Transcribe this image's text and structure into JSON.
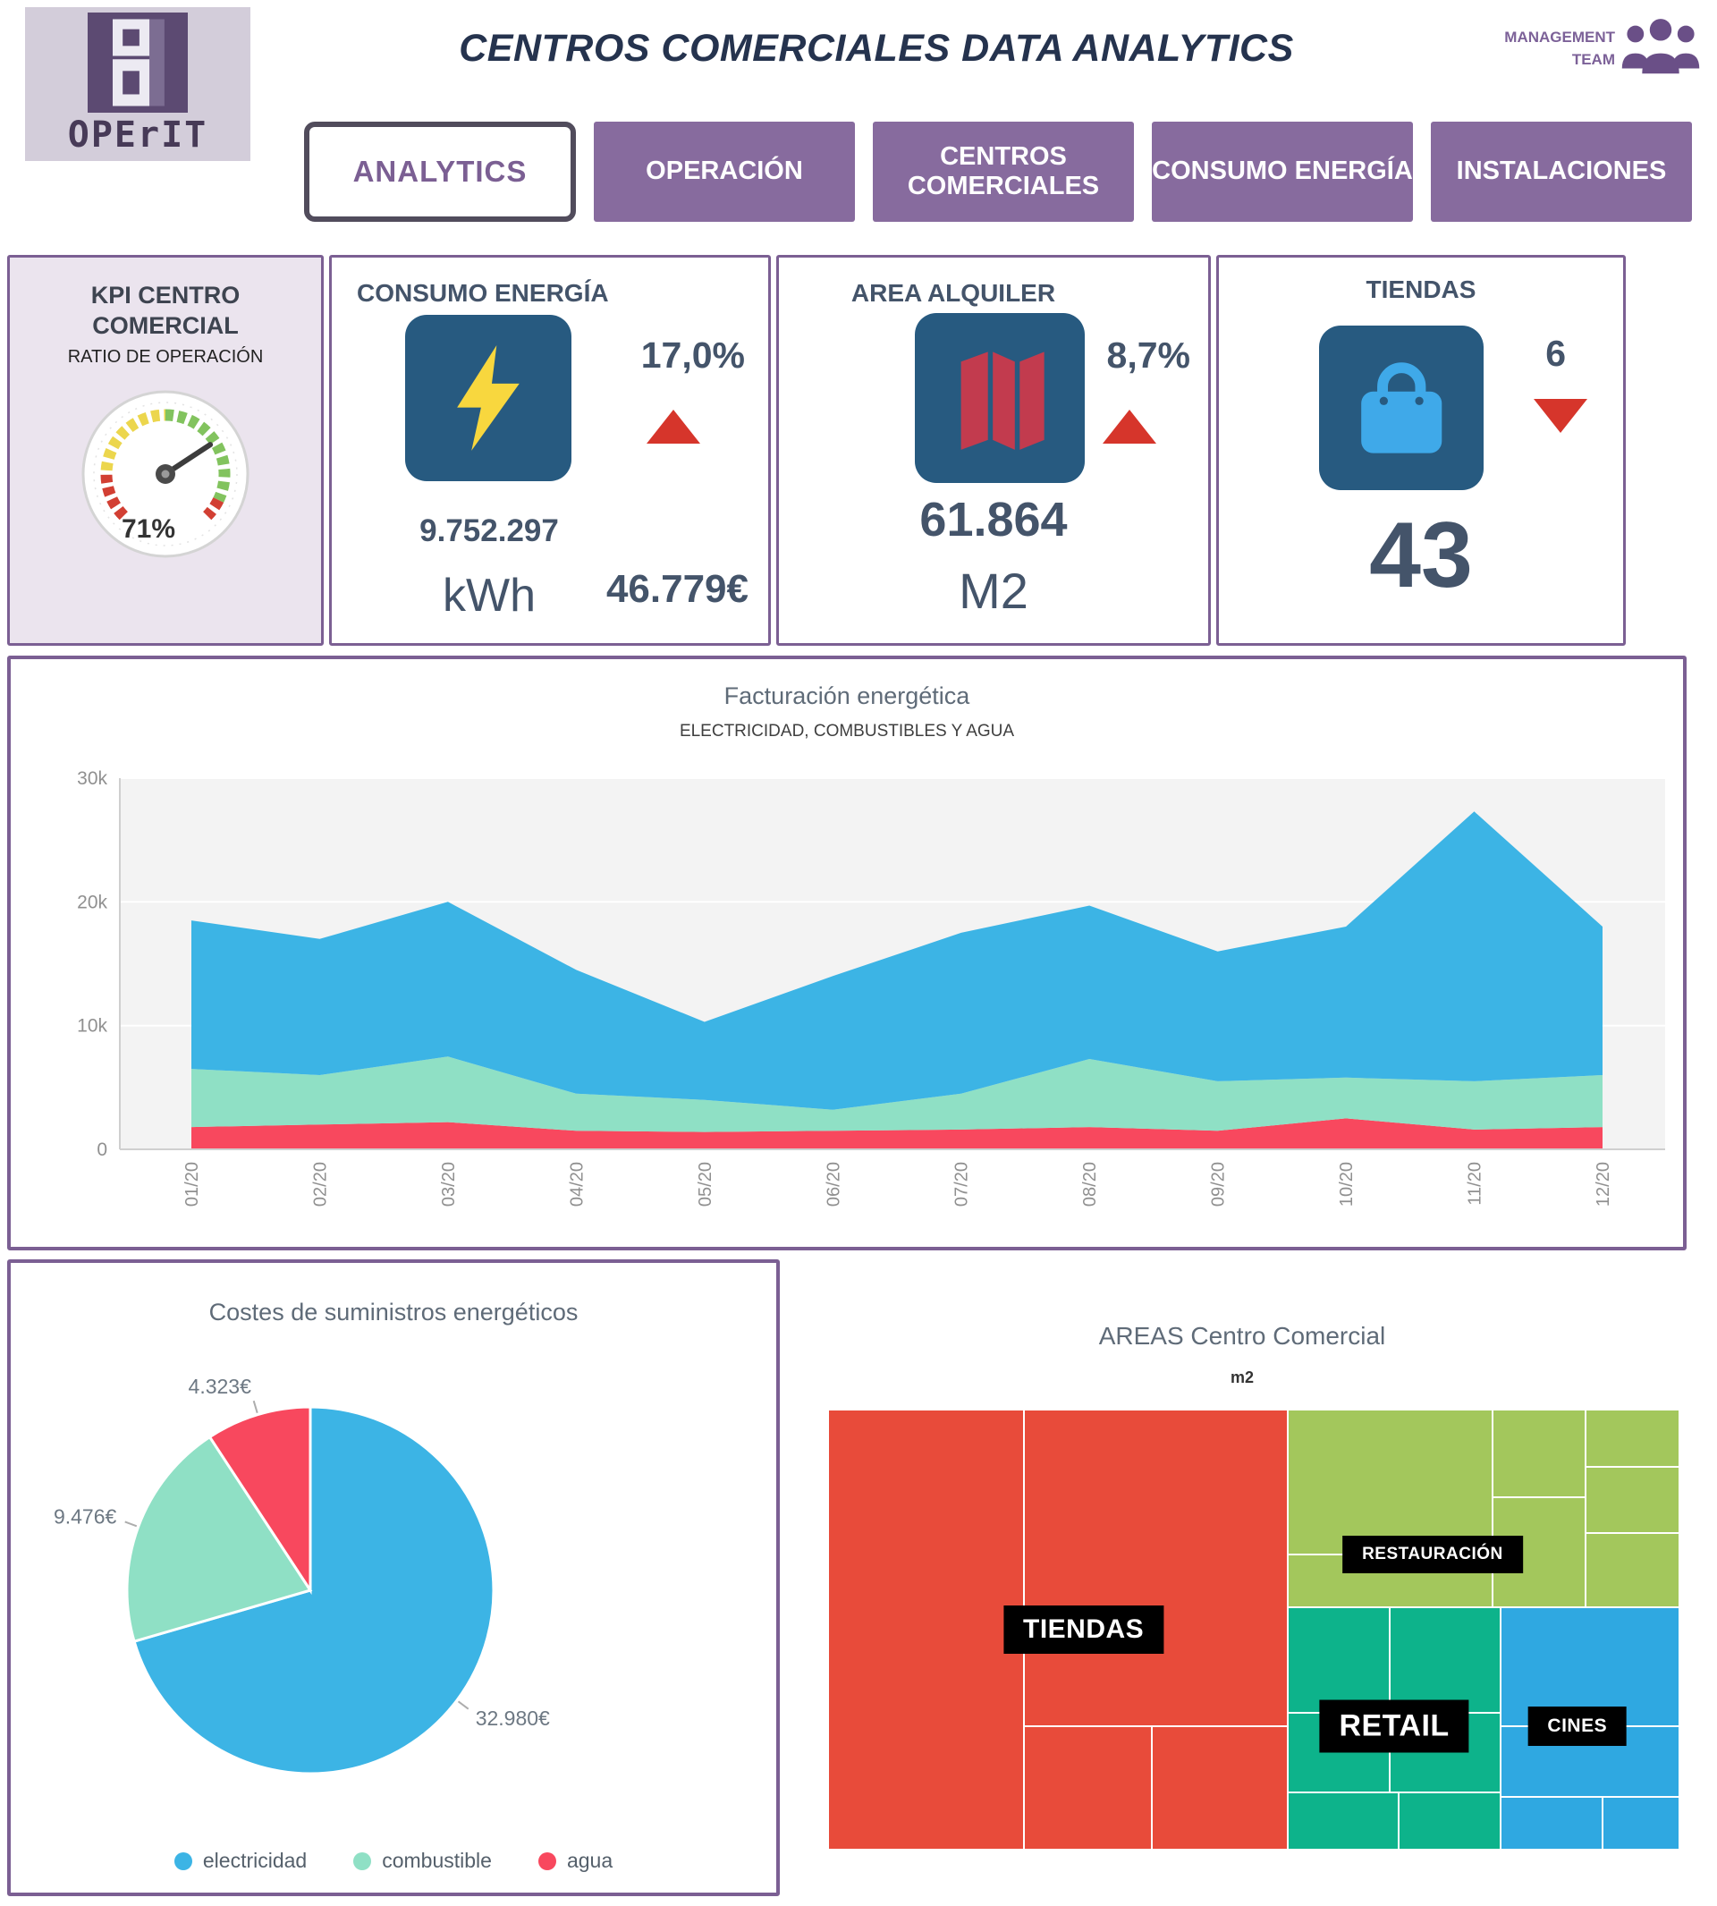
{
  "header": {
    "title": "CENTROS COMERCIALES DATA ANALYTICS",
    "logo_text": "OPErIT",
    "team_label": "MANAGEMENT TEAM"
  },
  "nav": {
    "tabs": [
      {
        "label": "ANALYTICS",
        "active": true
      },
      {
        "label": "OPERACIÓN",
        "active": false
      },
      {
        "label": "CENTROS COMERCIALES",
        "active": false
      },
      {
        "label": "CONSUMO ENERGÍA",
        "active": false
      },
      {
        "label": "INSTALACIONES",
        "active": false
      }
    ]
  },
  "kpis": {
    "gauge": {
      "title": "KPI CENTRO COMERCIAL",
      "subtitle": "RATIO DE OPERACIÓN",
      "value_pct": 71,
      "value_label": "71%",
      "zones": [
        {
          "from": 0,
          "to": 0.18,
          "color": "#d23f33"
        },
        {
          "from": 0.18,
          "to": 0.5,
          "color": "#ecd64d"
        },
        {
          "from": 0.5,
          "to": 0.93,
          "color": "#82c35e"
        },
        {
          "from": 0.93,
          "to": 1,
          "color": "#d23f33"
        }
      ]
    },
    "energia": {
      "title": "CONSUMO ENERGÍA",
      "delta": "17,0%",
      "trend": "up",
      "value": "9.752.297",
      "unit": "kWh",
      "cost": "46.779€",
      "icon": "lightning-icon",
      "icon_color": "#f8d73e",
      "tile_color": "#275a80"
    },
    "area": {
      "title": "AREA ALQUILER",
      "delta": "8,7%",
      "trend": "up",
      "value": "61.864",
      "unit": "M2",
      "icon": "map-icon",
      "icon_color": "#c23b4e"
    },
    "tiendas": {
      "title": "TIENDAS",
      "delta": "6",
      "trend": "down",
      "value": "43",
      "icon": "shopping-bag-icon",
      "icon_color": "#3fa9e9"
    },
    "trend_up_color": "#d6352b",
    "trend_down_color": "#d6352b"
  },
  "chart_data": [
    {
      "type": "area",
      "stacked": true,
      "title": "Facturación energética",
      "subtitle": "ELECTRICIDAD, COMBUSTIBLES Y AGUA",
      "x": [
        "01/20",
        "02/20",
        "03/20",
        "04/20",
        "05/20",
        "06/20",
        "07/20",
        "08/20",
        "09/20",
        "10/20",
        "11/20",
        "12/20"
      ],
      "ylim": [
        0,
        30000
      ],
      "yticks": [
        {
          "v": 0,
          "label": "0"
        },
        {
          "v": 10000,
          "label": "10k"
        },
        {
          "v": 20000,
          "label": "20k"
        },
        {
          "v": 30000,
          "label": "30k"
        }
      ],
      "grid": true,
      "legend_position": "none",
      "series": [
        {
          "name": "agua",
          "color": "#f8485e",
          "values": [
            1800,
            2000,
            2200,
            1500,
            1400,
            1500,
            1600,
            1800,
            1500,
            2500,
            1600,
            1800
          ]
        },
        {
          "name": "combustible",
          "color": "#8fe0c5",
          "values": [
            4700,
            4000,
            5300,
            3000,
            2600,
            1700,
            2900,
            5500,
            4000,
            3300,
            3900,
            4200
          ]
        },
        {
          "name": "electricidad",
          "color": "#3cb4e5",
          "values": [
            12000,
            11000,
            12500,
            10000,
            6300,
            10800,
            13000,
            12400,
            10500,
            12200,
            21800,
            12000
          ]
        }
      ]
    },
    {
      "type": "pie",
      "title": "Costes de suministros energéticos",
      "legend_position": "bottom",
      "slices": [
        {
          "name": "electricidad",
          "value": 32980,
          "label": "32.980€",
          "color": "#3cb4e5"
        },
        {
          "name": "combustible",
          "value": 9476,
          "label": "9.476€",
          "color": "#8fe0c5"
        },
        {
          "name": "agua",
          "value": 4323,
          "label": "4.323€",
          "color": "#f8485e"
        }
      ]
    },
    {
      "type": "treemap",
      "title": "AREAS Centro Comercial",
      "subtitle": "m2",
      "groups": [
        {
          "name": "TIENDAS",
          "color": "#e84b3a",
          "label": {
            "x": 30,
            "y": 50,
            "size": 30
          },
          "cells": [
            {
              "x": 0,
              "y": 0,
              "w": 23,
              "h": 100
            },
            {
              "x": 23,
              "y": 0,
              "w": 31,
              "h": 72
            },
            {
              "x": 23,
              "y": 72,
              "w": 15,
              "h": 28
            },
            {
              "x": 38,
              "y": 72,
              "w": 16,
              "h": 28
            }
          ]
        },
        {
          "name": "RESTAURACIÓN",
          "color": "#a3c75c",
          "label": {
            "x": 71,
            "y": 33,
            "size": 19
          },
          "cells": [
            {
              "x": 54,
              "y": 0,
              "w": 24,
              "h": 33
            },
            {
              "x": 54,
              "y": 33,
              "w": 24,
              "h": 12
            },
            {
              "x": 78,
              "y": 0,
              "w": 11,
              "h": 20
            },
            {
              "x": 78,
              "y": 20,
              "w": 11,
              "h": 25
            },
            {
              "x": 89,
              "y": 0,
              "w": 11,
              "h": 13
            },
            {
              "x": 89,
              "y": 13,
              "w": 11,
              "h": 15
            },
            {
              "x": 89,
              "y": 28,
              "w": 11,
              "h": 17
            }
          ]
        },
        {
          "name": "RETAIL",
          "color": "#0db38b",
          "label": {
            "x": 66.5,
            "y": 72,
            "size": 34
          },
          "cells": [
            {
              "x": 54,
              "y": 45,
              "w": 12,
              "h": 24
            },
            {
              "x": 66,
              "y": 45,
              "w": 13,
              "h": 24
            },
            {
              "x": 54,
              "y": 69,
              "w": 12,
              "h": 18
            },
            {
              "x": 66,
              "y": 69,
              "w": 13,
              "h": 18
            },
            {
              "x": 54,
              "y": 87,
              "w": 13,
              "h": 13
            },
            {
              "x": 67,
              "y": 87,
              "w": 12,
              "h": 13
            }
          ]
        },
        {
          "name": "CINES",
          "color": "#2fa8e1",
          "label": {
            "x": 88,
            "y": 72,
            "size": 21
          },
          "cells": [
            {
              "x": 79,
              "y": 45,
              "w": 21,
              "h": 27
            },
            {
              "x": 79,
              "y": 72,
              "w": 21,
              "h": 16
            },
            {
              "x": 79,
              "y": 88,
              "w": 12,
              "h": 12
            },
            {
              "x": 91,
              "y": 88,
              "w": 9,
              "h": 12
            }
          ]
        }
      ]
    }
  ]
}
